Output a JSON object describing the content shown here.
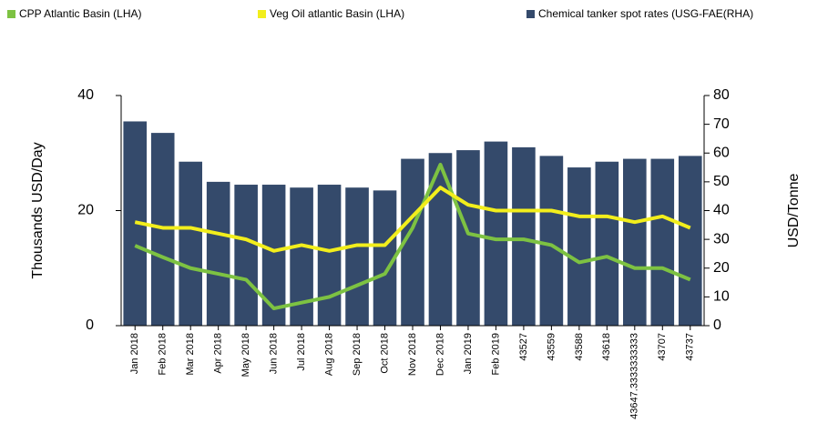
{
  "chart_data": {
    "type": "bar_line",
    "categories": [
      "Jan 2018",
      "Feb 2018",
      "Mar 2018",
      "Apr 2018",
      "May 2018",
      "Jun 2018",
      "Jul 2018",
      "Aug 2018",
      "Sep 2018",
      "Oct 2018",
      "Nov 2018",
      "Dec 2018",
      "Jan 2019",
      "Feb 2019",
      "43527",
      "43559",
      "43588",
      "43618",
      "43647.3333333333",
      "43707",
      "43737"
    ],
    "ylabel": "Thousands USD/Day",
    "y2label": "USD/Tonne",
    "ylim": [
      0,
      40
    ],
    "yticks": [
      0,
      20,
      40
    ],
    "y2lim": [
      0,
      80
    ],
    "y2ticks": [
      0,
      10,
      20,
      30,
      40,
      50,
      60,
      70,
      80
    ],
    "series": [
      {
        "name": "CPP Atlantic Basin (LHA)",
        "color": "#7dc242",
        "kind": "line",
        "axis": "y",
        "values": [
          13.9,
          11.9,
          10,
          9,
          8,
          3,
          4,
          5,
          7,
          9,
          17,
          28,
          16,
          15,
          15,
          14,
          11,
          12,
          10,
          10,
          8
        ]
      },
      {
        "name": "Veg Oil atlantic Basin (LHA)",
        "color": "#f2ee1c",
        "kind": "line",
        "axis": "y",
        "values": [
          18,
          17,
          17,
          16,
          15,
          13,
          14,
          13,
          14,
          14,
          19,
          24,
          21,
          20,
          20,
          20,
          19,
          19,
          18,
          19,
          17
        ]
      },
      {
        "name": "Chemical tanker spot rates (USG-FAE(RHA)",
        "color": "#344a6b",
        "kind": "bar",
        "axis": "y2",
        "values": [
          71,
          67,
          57,
          50,
          49,
          49,
          48,
          49,
          48,
          47,
          58,
          60,
          61,
          64,
          62,
          59,
          55,
          57,
          58,
          58,
          59
        ]
      }
    ]
  }
}
